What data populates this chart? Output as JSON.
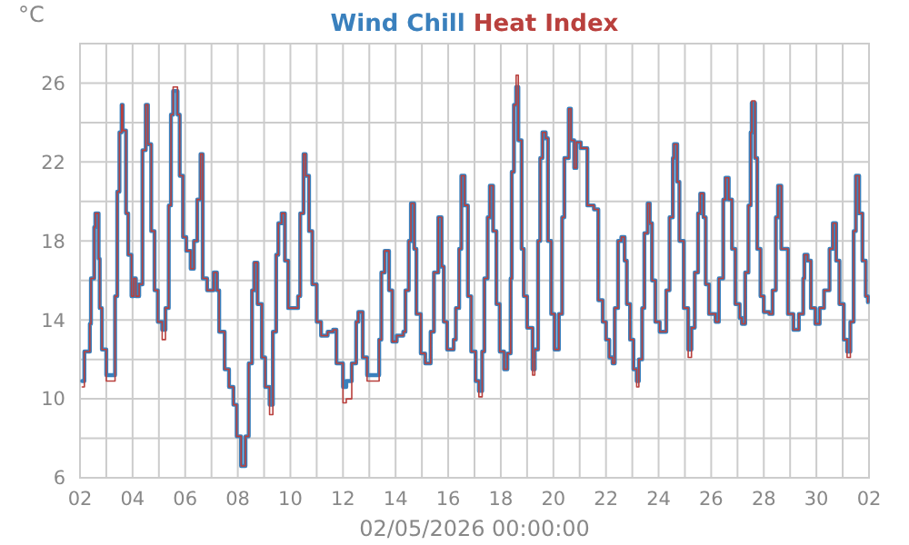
{
  "chart_data": {
    "type": "step",
    "ylabel": "°C",
    "xlabel": "02/05/2026 00:00:00",
    "legend": "top",
    "grid": true,
    "xlim": [
      "2026-04-02",
      "2026-05-02"
    ],
    "xticks": [
      {
        "value": "2026-04-02",
        "label": "02"
      },
      {
        "value": "2026-04-03",
        "label": null
      },
      {
        "value": "2026-04-04",
        "label": "04"
      },
      {
        "value": "2026-04-05",
        "label": null
      },
      {
        "value": "2026-04-06",
        "label": "06"
      },
      {
        "value": "2026-04-07",
        "label": null
      },
      {
        "value": "2026-04-08",
        "label": "08"
      },
      {
        "value": "2026-04-09",
        "label": null
      },
      {
        "value": "2026-04-10",
        "label": "10"
      },
      {
        "value": "2026-04-11",
        "label": null
      },
      {
        "value": "2026-04-12",
        "label": "12"
      },
      {
        "value": "2026-04-13",
        "label": null
      },
      {
        "value": "2026-04-14",
        "label": "14"
      },
      {
        "value": "2026-04-15",
        "label": null
      },
      {
        "value": "2026-04-16",
        "label": "16"
      },
      {
        "value": "2026-04-17",
        "label": null
      },
      {
        "value": "2026-04-18",
        "label": "18"
      },
      {
        "value": "2026-04-19",
        "label": null
      },
      {
        "value": "2026-04-20",
        "label": "20"
      },
      {
        "value": "2026-04-21",
        "label": null
      },
      {
        "value": "2026-04-22",
        "label": "22"
      },
      {
        "value": "2026-04-23",
        "label": null
      },
      {
        "value": "2026-04-24",
        "label": "24"
      },
      {
        "value": "2026-04-25",
        "label": null
      },
      {
        "value": "2026-04-26",
        "label": "26"
      },
      {
        "value": "2026-04-27",
        "label": null
      },
      {
        "value": "2026-04-28",
        "label": "28"
      },
      {
        "value": "2026-04-29",
        "label": null
      },
      {
        "value": "2026-04-30",
        "label": "30"
      },
      {
        "value": "2026-05-01",
        "label": null
      },
      {
        "value": "2026-05-02",
        "label": "02"
      }
    ],
    "ylim": [
      6,
      28
    ],
    "yticks": [
      6,
      {
        "value": 8,
        "label": null
      },
      10,
      {
        "value": 12,
        "label": null
      },
      14,
      {
        "value": 16,
        "label": null
      },
      18,
      {
        "value": 20,
        "label": null
      },
      22,
      {
        "value": 24,
        "label": null
      },
      26,
      {
        "value": 28,
        "label": null
      }
    ],
    "x": [
      "2026-04-02T02:00",
      "2026-04-02T04:00",
      "2026-04-02T09:00",
      "2026-04-02T10:00",
      "2026-04-02T13:00",
      "2026-04-02T14:00",
      "2026-04-02T17:00",
      "2026-04-02T18:00",
      "2026-04-02T20:00",
      "2026-04-03T00:00",
      "2026-04-03T05:00",
      "2026-04-03T08:00",
      "2026-04-03T10:00",
      "2026-04-03T12:00",
      "2026-04-03T14:00",
      "2026-04-03T15:00",
      "2026-04-03T18:00",
      "2026-04-03T20:00",
      "2026-04-03T23:00",
      "2026-04-04T01:00",
      "2026-04-04T03:00",
      "2026-04-04T06:00",
      "2026-04-04T09:00",
      "2026-04-04T12:00",
      "2026-04-04T14:00",
      "2026-04-04T17:00",
      "2026-04-04T20:00",
      "2026-04-04T23:00",
      "2026-04-05T03:00",
      "2026-04-05T06:00",
      "2026-04-05T09:00",
      "2026-04-05T11:00",
      "2026-04-05T13:00",
      "2026-04-05T17:00",
      "2026-04-05T19:00",
      "2026-04-05T22:00",
      "2026-04-06T01:00",
      "2026-04-06T05:00",
      "2026-04-06T08:00",
      "2026-04-06T11:00",
      "2026-04-06T14:00",
      "2026-04-06T16:00",
      "2026-04-06T20:00",
      "2026-04-07T02:00",
      "2026-04-07T05:00",
      "2026-04-07T07:00",
      "2026-04-07T12:00",
      "2026-04-07T16:00",
      "2026-04-07T20:00",
      "2026-04-07T23:00",
      "2026-04-08T03:00",
      "2026-04-08T07:00",
      "2026-04-08T10:00",
      "2026-04-08T13:00",
      "2026-04-08T15:00",
      "2026-04-08T18:00",
      "2026-04-08T22:00",
      "2026-04-09T01:00",
      "2026-04-09T05:00",
      "2026-04-09T08:00",
      "2026-04-09T11:00",
      "2026-04-09T13:00",
      "2026-04-09T16:00",
      "2026-04-09T19:00",
      "2026-04-09T22:00",
      "2026-04-10T03:00",
      "2026-04-10T07:00",
      "2026-04-10T09:00",
      "2026-04-10T12:00",
      "2026-04-10T14:00",
      "2026-04-10T17:00",
      "2026-04-10T20:00",
      "2026-04-11T00:00",
      "2026-04-11T04:00",
      "2026-04-11T10:00",
      "2026-04-11T15:00",
      "2026-04-11T18:00",
      "2026-04-12T00:00",
      "2026-04-12T03:00",
      "2026-04-12T08:00",
      "2026-04-12T12:00",
      "2026-04-12T14:00",
      "2026-04-12T18:00",
      "2026-04-12T22:00",
      "2026-04-13T06:00",
      "2026-04-13T09:00",
      "2026-04-13T11:00",
      "2026-04-13T14:00",
      "2026-04-13T18:00",
      "2026-04-13T21:00",
      "2026-04-14T01:00",
      "2026-04-14T07:00",
      "2026-04-14T09:00",
      "2026-04-14T12:00",
      "2026-04-14T14:00",
      "2026-04-14T17:00",
      "2026-04-14T19:00",
      "2026-04-14T23:00",
      "2026-04-15T03:00",
      "2026-04-15T08:00",
      "2026-04-15T11:00",
      "2026-04-15T15:00",
      "2026-04-15T18:00",
      "2026-04-15T20:00",
      "2026-04-15T23:00",
      "2026-04-16T05:00",
      "2026-04-16T07:00",
      "2026-04-16T10:00",
      "2026-04-16T12:00",
      "2026-04-16T15:00",
      "2026-04-16T18:00",
      "2026-04-16T21:00",
      "2026-04-17T01:00",
      "2026-04-17T04:00",
      "2026-04-17T07:00",
      "2026-04-17T09:00",
      "2026-04-17T12:00",
      "2026-04-17T14:00",
      "2026-04-17T17:00",
      "2026-04-17T20:00",
      "2026-04-17T23:00",
      "2026-04-18T03:00",
      "2026-04-18T06:00",
      "2026-04-18T09:00",
      "2026-04-18T10:00",
      "2026-04-18T12:00",
      "2026-04-18T14:00",
      "2026-04-18T16:00",
      "2026-04-18T19:00",
      "2026-04-18T21:00",
      "2026-04-19T00:00",
      "2026-04-19T05:00",
      "2026-04-19T07:00",
      "2026-04-19T10:00",
      "2026-04-19T12:00",
      "2026-04-19T14:00",
      "2026-04-19T17:00",
      "2026-04-19T19:00",
      "2026-04-19T22:00",
      "2026-04-20T01:00",
      "2026-04-20T05:00",
      "2026-04-20T08:00",
      "2026-04-20T10:00",
      "2026-04-20T14:00",
      "2026-04-20T16:00",
      "2026-04-20T19:00",
      "2026-04-20T21:00",
      "2026-04-21T01:00",
      "2026-04-21T07:00",
      "2026-04-21T13:00",
      "2026-04-21T17:00",
      "2026-04-21T21:00",
      "2026-04-22T00:00",
      "2026-04-22T03:00",
      "2026-04-22T06:00",
      "2026-04-22T08:00",
      "2026-04-22T11:00",
      "2026-04-22T14:00",
      "2026-04-22T17:00",
      "2026-04-22T19:00",
      "2026-04-22T22:00",
      "2026-04-23T01:00",
      "2026-04-23T04:00",
      "2026-04-23T06:00",
      "2026-04-23T09:00",
      "2026-04-23T11:00",
      "2026-04-23T14:00",
      "2026-04-23T16:00",
      "2026-04-23T18:00",
      "2026-04-23T21:00",
      "2026-04-24T01:00",
      "2026-04-24T05:00",
      "2026-04-24T07:00",
      "2026-04-24T10:00",
      "2026-04-24T13:00",
      "2026-04-24T14:00",
      "2026-04-24T17:00",
      "2026-04-24T19:00",
      "2026-04-24T23:00",
      "2026-04-25T03:00",
      "2026-04-25T06:00",
      "2026-04-25T09:00",
      "2026-04-25T12:00",
      "2026-04-25T14:00",
      "2026-04-25T17:00",
      "2026-04-25T19:00",
      "2026-04-25T22:00",
      "2026-04-26T04:00",
      "2026-04-26T07:00",
      "2026-04-26T11:00",
      "2026-04-26T13:00",
      "2026-04-26T16:00",
      "2026-04-26T19:00",
      "2026-04-26T22:00",
      "2026-04-27T02:00",
      "2026-04-27T04:00",
      "2026-04-27T07:00",
      "2026-04-27T10:00",
      "2026-04-27T12:00",
      "2026-04-27T13:00",
      "2026-04-27T16:00",
      "2026-04-27T18:00",
      "2026-04-27T21:00",
      "2026-04-28T00:00",
      "2026-04-28T05:00",
      "2026-04-28T08:00",
      "2026-04-28T11:00",
      "2026-04-28T13:00",
      "2026-04-28T16:00",
      "2026-04-28T22:00",
      "2026-04-29T03:00",
      "2026-04-29T08:00",
      "2026-04-29T12:00",
      "2026-04-29T13:00",
      "2026-04-29T16:00",
      "2026-04-29T19:00",
      "2026-04-29T23:00",
      "2026-04-30T03:00",
      "2026-04-30T07:00",
      "2026-04-30T12:00",
      "2026-04-30T15:00",
      "2026-04-30T18:00",
      "2026-04-30T21:00",
      "2026-05-01T01:00",
      "2026-05-01T04:00",
      "2026-05-01T07:00",
      "2026-05-01T10:00",
      "2026-05-01T12:00",
      "2026-05-01T15:00",
      "2026-05-01T18:00",
      "2026-05-01T21:00",
      "2026-05-01T23:00"
    ],
    "series": [
      {
        "name": "Wind Chill",
        "color": "#3a80bd",
        "values": [
          10.9,
          12.4,
          13.8,
          16.1,
          18.7,
          19.4,
          17.1,
          14.6,
          12.5,
          11.2,
          11.2,
          15.2,
          20.5,
          23.5,
          24.9,
          23.6,
          19.4,
          17.3,
          15.2,
          16.1,
          15.2,
          15.8,
          22.6,
          24.9,
          22.9,
          18.5,
          15.5,
          13.9,
          13.5,
          14.6,
          19.8,
          24.4,
          25.6,
          24.4,
          21.3,
          18.2,
          17.5,
          16.6,
          18.0,
          20.1,
          22.4,
          16.1,
          15.5,
          16.4,
          15.5,
          13.4,
          11.5,
          10.6,
          9.7,
          8.1,
          6.6,
          8.1,
          11.8,
          15.5,
          16.9,
          14.8,
          12.1,
          10.6,
          9.7,
          13.4,
          17.3,
          18.9,
          19.4,
          17.0,
          14.6,
          14.6,
          15.2,
          19.4,
          22.4,
          21.3,
          18.5,
          15.8,
          13.9,
          13.2,
          13.4,
          13.5,
          11.8,
          10.6,
          10.9,
          11.8,
          13.9,
          14.4,
          12.1,
          11.2,
          11.2,
          13.0,
          16.4,
          17.5,
          15.5,
          12.9,
          13.2,
          13.4,
          15.5,
          18.0,
          19.9,
          17.6,
          14.3,
          12.3,
          11.8,
          13.4,
          16.4,
          19.2,
          16.7,
          13.9,
          12.5,
          13.0,
          14.6,
          17.6,
          21.3,
          19.8,
          15.2,
          12.4,
          10.9,
          10.4,
          12.4,
          16.1,
          19.2,
          20.8,
          18.5,
          14.8,
          12.4,
          11.5,
          12.3,
          16.1,
          21.5,
          24.9,
          25.8,
          23.1,
          17.6,
          15.2,
          13.6,
          11.5,
          12.5,
          18.0,
          22.2,
          23.5,
          23.2,
          18.0,
          14.3,
          12.5,
          14.3,
          19.2,
          22.2,
          24.7,
          23.1,
          21.7,
          23.0,
          22.7,
          19.8,
          19.6,
          15.0,
          13.9,
          13.0,
          12.1,
          11.8,
          14.6,
          18.0,
          18.2,
          17.0,
          14.8,
          13.0,
          11.5,
          10.9,
          12.0,
          14.6,
          18.4,
          19.9,
          18.9,
          16.0,
          13.9,
          13.4,
          13.4,
          15.5,
          19.2,
          22.2,
          22.9,
          21.0,
          18.0,
          14.6,
          12.5,
          13.6,
          16.4,
          19.4,
          20.4,
          19.2,
          15.8,
          14.3,
          13.9,
          16.1,
          20.1,
          21.2,
          20.1,
          17.6,
          14.8,
          14.1,
          13.8,
          16.4,
          19.8,
          23.5,
          25.0,
          22.2,
          17.6,
          15.2,
          14.4,
          14.3,
          15.5,
          19.2,
          20.8,
          17.6,
          14.3,
          13.5,
          14.3,
          16.1,
          17.3,
          17.0,
          14.6,
          13.8,
          14.6,
          15.5,
          17.6,
          18.9,
          17.0,
          14.8,
          13.0,
          12.4,
          13.9,
          18.5,
          21.3,
          19.4,
          17.0,
          15.2,
          14.9
        ]
      },
      {
        "name": "Heat Index",
        "color": "#b9403d",
        "values": [
          10.6,
          12.4,
          13.8,
          16.1,
          18.7,
          19.4,
          17.1,
          14.6,
          12.5,
          10.9,
          10.9,
          15.2,
          20.5,
          23.5,
          24.9,
          23.6,
          19.4,
          17.3,
          15.2,
          16.1,
          15.2,
          15.8,
          22.6,
          24.9,
          22.9,
          18.5,
          15.5,
          13.9,
          13.0,
          14.6,
          19.8,
          24.4,
          25.8,
          24.4,
          21.3,
          18.2,
          17.5,
          16.6,
          18.0,
          20.1,
          22.4,
          16.1,
          15.5,
          16.4,
          15.5,
          13.4,
          11.5,
          10.6,
          9.7,
          8.1,
          6.6,
          8.1,
          11.8,
          15.5,
          16.9,
          14.8,
          12.1,
          10.6,
          9.2,
          13.4,
          17.3,
          18.9,
          19.4,
          17.0,
          14.6,
          14.6,
          15.2,
          19.4,
          22.4,
          21.3,
          18.5,
          15.8,
          13.9,
          13.2,
          13.4,
          13.5,
          11.8,
          9.8,
          10.0,
          11.8,
          13.9,
          14.4,
          12.1,
          10.9,
          10.9,
          13.0,
          16.4,
          17.5,
          15.5,
          12.9,
          13.2,
          13.4,
          15.5,
          18.0,
          19.9,
          17.6,
          14.3,
          12.3,
          11.8,
          13.4,
          16.4,
          19.2,
          16.7,
          13.9,
          12.5,
          13.0,
          14.6,
          17.6,
          21.3,
          19.8,
          15.2,
          12.4,
          10.9,
          10.1,
          12.4,
          16.1,
          19.2,
          20.8,
          18.5,
          14.8,
          12.4,
          11.5,
          12.3,
          16.1,
          21.5,
          24.9,
          26.4,
          23.1,
          17.6,
          15.2,
          13.6,
          11.2,
          12.5,
          18.0,
          22.2,
          23.5,
          23.2,
          18.0,
          14.3,
          12.5,
          14.3,
          19.2,
          22.2,
          24.7,
          23.1,
          21.7,
          23.0,
          22.7,
          19.8,
          19.6,
          15.0,
          13.9,
          13.0,
          12.1,
          11.8,
          14.6,
          18.0,
          18.2,
          17.0,
          14.8,
          13.0,
          11.5,
          10.6,
          12.0,
          14.6,
          18.4,
          19.9,
          18.9,
          16.0,
          13.9,
          13.4,
          13.4,
          15.5,
          19.2,
          22.2,
          22.9,
          21.0,
          18.0,
          14.6,
          12.1,
          13.6,
          16.4,
          19.4,
          20.4,
          19.2,
          15.8,
          14.3,
          13.9,
          16.1,
          20.1,
          21.2,
          20.1,
          17.6,
          14.8,
          14.1,
          13.8,
          16.4,
          19.8,
          23.5,
          25.1,
          22.2,
          17.6,
          15.2,
          14.4,
          14.3,
          15.5,
          19.2,
          20.8,
          17.6,
          14.3,
          13.5,
          14.3,
          16.1,
          17.3,
          17.0,
          14.6,
          13.8,
          14.6,
          15.5,
          17.6,
          18.9,
          17.0,
          14.8,
          13.0,
          12.1,
          13.9,
          18.5,
          21.3,
          19.4,
          17.0,
          15.2,
          14.9
        ]
      }
    ]
  }
}
